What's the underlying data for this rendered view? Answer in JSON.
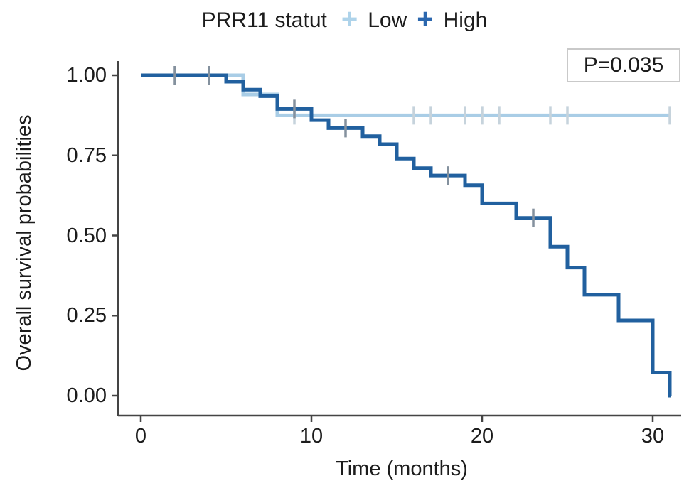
{
  "chart_data": {
    "type": "line",
    "subtype": "kaplan-meier-step",
    "legend_title": "PRR11 statut",
    "pvalue_label": "P=0.035",
    "xlabel": "Time (months)",
    "ylabel": "Overall survival probabilities",
    "xlim": [
      0,
      31.7
    ],
    "ylim": [
      0,
      1
    ],
    "grid": "off",
    "legend_position": "top-center",
    "xticks": [
      {
        "label": "0",
        "value": 0
      },
      {
        "label": "10",
        "value": 10
      },
      {
        "label": "20",
        "value": 20
      },
      {
        "label": "30",
        "value": 30
      }
    ],
    "yticks": [
      {
        "label": "1.00",
        "value": 1.0
      },
      {
        "label": "0.75",
        "value": 0.75
      },
      {
        "label": "0.50",
        "value": 0.5
      },
      {
        "label": "0.25",
        "value": 0.25
      },
      {
        "label": "0.00",
        "value": 0.0
      }
    ],
    "marker_glyph": "+",
    "series": [
      {
        "name": "Low",
        "color": "#a9cde6",
        "censor_color": "#c6d3dc",
        "end_time": 31.0,
        "steps": [
          [
            0,
            1.0
          ],
          [
            6,
            0.94
          ],
          [
            8,
            0.875
          ]
        ],
        "censors": [
          [
            9,
            0.875
          ],
          [
            16,
            0.875
          ],
          [
            17,
            0.875
          ],
          [
            19,
            0.875
          ],
          [
            20,
            0.875
          ],
          [
            21,
            0.875
          ],
          [
            24,
            0.875
          ],
          [
            25,
            0.875
          ],
          [
            31,
            0.875
          ]
        ]
      },
      {
        "name": "High",
        "color": "#21609f",
        "censor_color": "#84919e",
        "end_time": 31.05,
        "steps": [
          [
            0,
            1.0
          ],
          [
            5,
            0.98
          ],
          [
            6,
            0.955
          ],
          [
            7,
            0.935
          ],
          [
            8,
            0.895
          ],
          [
            10,
            0.86
          ],
          [
            11,
            0.835
          ],
          [
            13,
            0.81
          ],
          [
            14,
            0.785
          ],
          [
            15,
            0.74
          ],
          [
            16,
            0.71
          ],
          [
            17,
            0.687
          ],
          [
            19,
            0.657
          ],
          [
            20,
            0.6
          ],
          [
            22,
            0.555
          ],
          [
            24,
            0.465
          ],
          [
            25,
            0.4
          ],
          [
            26,
            0.315
          ],
          [
            28,
            0.235
          ],
          [
            30,
            0.072
          ],
          [
            31,
            0.0
          ]
        ],
        "censors": [
          [
            2,
            1.0
          ],
          [
            4,
            1.0
          ],
          [
            9,
            0.895
          ],
          [
            12,
            0.835
          ],
          [
            18,
            0.687
          ],
          [
            23,
            0.555
          ]
        ]
      }
    ]
  }
}
